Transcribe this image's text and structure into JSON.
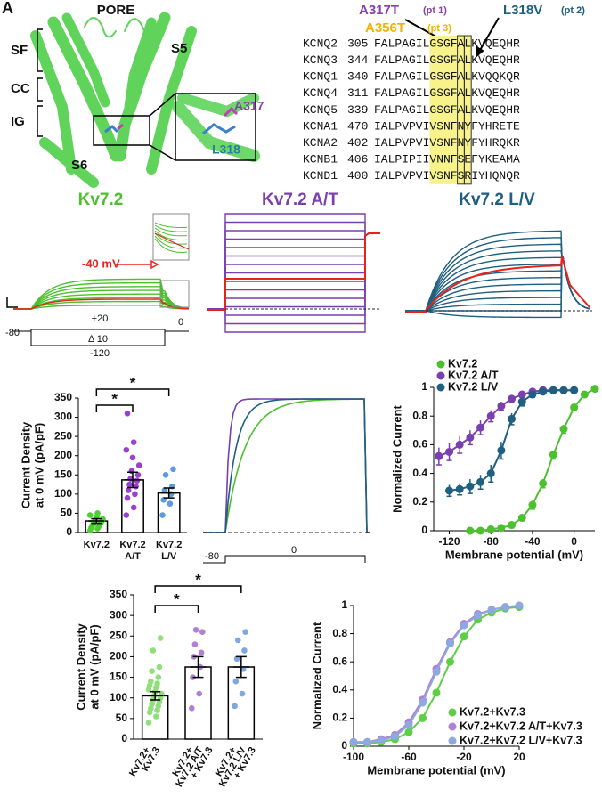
{
  "panel_label": "A",
  "structure": {
    "title": "PORE",
    "regions": [
      "SF",
      "CC",
      "IG"
    ],
    "helices": [
      "S5",
      "S6"
    ],
    "residues": [
      "A317",
      "L318"
    ]
  },
  "alignment": {
    "mutations": [
      {
        "name": "A317T",
        "patient": "(pt 1)",
        "color": "#8a3fb0"
      },
      {
        "name": "A356T",
        "patient": "(pt 3)",
        "color": "#f0b400"
      },
      {
        "name": "L318V",
        "patient": "(pt 2)",
        "color": "#1f5f80"
      }
    ],
    "rows": [
      [
        "KCNQ2",
        "305",
        "FALPAGILGSGFALKVQEQHR"
      ],
      [
        "KCNQ3",
        "344",
        "FALPAGILGSGFALKVQEQHR"
      ],
      [
        "KCNQ1",
        "340",
        "FALPAGILGSGFALKVQQKQR"
      ],
      [
        "KCNQ4",
        "311",
        "FALPAGILGSGFALKVQEQHR"
      ],
      [
        "KCNQ5",
        "339",
        "FALPAGILGSGFALKVQEQHR"
      ],
      [
        "KCNA1",
        "470",
        "IALPVPVIVSNFNYFYHRETE"
      ],
      [
        "KCNA2",
        "402",
        "IALPVPVIVSNFNYFYHRQKR"
      ],
      [
        "KCNB1",
        "406",
        "IALPIPIIVNNFSEFYKEAMA"
      ],
      [
        "KCND1",
        "400",
        "IALPVPVIVSNFSRIYHQNQR"
      ]
    ]
  },
  "traces": {
    "titles": [
      "Kv7.2",
      "Kv7.2 A/T",
      "Kv7.2 L/V"
    ],
    "colors": [
      "#4cc02f",
      "#7a3fb0",
      "#1f5f80"
    ],
    "annotation": "-40 mV",
    "protocol": {
      "hold": "-80",
      "top": "+20",
      "step": "Δ 10",
      "bottom": "-120",
      "tail": "0"
    }
  },
  "activation": {
    "protocol": {
      "hold": "-80",
      "step": "0"
    }
  },
  "chart_data": [
    {
      "type": "bar",
      "ylabel": [
        "Current Density",
        "at 0 mV (pA/pF)"
      ],
      "categories": [
        [
          "Kv7.2"
        ],
        [
          "Kv7.2",
          "A/T"
        ],
        [
          "Kv7.2",
          "L/V"
        ]
      ],
      "values": [
        30,
        137,
        103
      ],
      "errors": [
        6,
        20,
        13
      ],
      "colors": [
        "#4cd02f",
        "#9b3fd0",
        "#5b9be0"
      ],
      "points": [
        [
          5,
          10,
          12,
          15,
          18,
          20,
          22,
          25,
          28,
          30,
          32,
          35,
          40,
          45,
          50
        ],
        [
          45,
          65,
          90,
          100,
          110,
          120,
          125,
          135,
          140,
          150,
          160,
          175,
          195,
          215,
          235,
          310
        ],
        [
          45,
          75,
          85,
          100,
          110,
          120,
          150,
          165
        ]
      ],
      "ylim": [
        0,
        350
      ],
      "yticks": [
        0,
        50,
        100,
        150,
        200,
        250,
        300,
        350
      ],
      "annotations": [
        "*",
        "*"
      ]
    },
    {
      "type": "line",
      "xlabel": "Membrane potential (mV)",
      "ylabel": "Normalized Current",
      "x": [
        -130,
        -120,
        -110,
        -100,
        -90,
        -80,
        -70,
        -60,
        -50,
        -40,
        -30,
        -20,
        -10,
        0,
        10,
        20
      ],
      "series": [
        {
          "name": "Kv7.2",
          "color": "#4cc02f",
          "values": [
            null,
            null,
            null,
            0,
            0,
            0.01,
            0.02,
            0.04,
            0.09,
            0.18,
            0.33,
            0.53,
            0.71,
            0.86,
            0.95,
            0.99
          ],
          "errors": [
            null,
            null,
            null,
            0.01,
            0.01,
            0.01,
            0.01,
            0.02,
            0.02,
            0.03,
            0.03,
            0.03,
            0.03,
            0.02,
            0.02,
            0.01
          ]
        },
        {
          "name": "Kv7.2 A/T",
          "color": "#7a3fb0",
          "values": [
            0.52,
            0.55,
            0.6,
            0.65,
            0.72,
            0.8,
            0.87,
            0.92,
            0.95,
            0.97,
            0.98,
            0.98,
            0.98,
            0.98,
            null,
            null
          ],
          "errors": [
            0.06,
            0.06,
            0.06,
            0.05,
            0.05,
            0.04,
            0.03,
            0.02,
            0.02,
            0.01,
            0.01,
            0.01,
            0.01,
            0.01,
            null,
            null
          ]
        },
        {
          "name": "Kv7.2 L/V",
          "color": "#1f5f80",
          "values": [
            null,
            0.28,
            0.29,
            0.31,
            0.34,
            0.4,
            0.56,
            0.78,
            0.9,
            0.95,
            0.97,
            0.98,
            0.98,
            0.98,
            null,
            null
          ],
          "errors": [
            null,
            0.04,
            0.04,
            0.05,
            0.05,
            0.06,
            0.06,
            0.04,
            0.03,
            0.02,
            0.01,
            0.01,
            0.01,
            0.01,
            null,
            null
          ]
        }
      ],
      "xlim": [
        -135,
        20
      ],
      "xticks": [
        -120,
        -80,
        -40,
        0
      ],
      "ylim": [
        0,
        1
      ],
      "yticks": [
        0,
        0.2,
        0.4,
        0.6,
        0.8,
        1
      ],
      "legend": "top-left"
    },
    {
      "type": "bar",
      "ylabel": [
        "Current Density",
        "at 0 mV (pA/pF)"
      ],
      "categories": [
        [
          "Kv7.2+",
          "Kv7.3"
        ],
        [
          "Kv7.2+",
          "Kv7.2 A/T",
          "+ Kv7.3"
        ],
        [
          "Kv7.2+",
          "Kv7.2 L/V",
          "+ Kv7.3"
        ]
      ],
      "values": [
        105,
        175,
        175
      ],
      "errors": [
        10,
        25,
        25
      ],
      "colors": [
        "#8fe07a",
        "#b07fd6",
        "#7fa8e0"
      ],
      "points": [
        [
          40,
          55,
          65,
          70,
          75,
          80,
          85,
          90,
          95,
          100,
          105,
          110,
          115,
          120,
          125,
          130,
          135,
          140,
          150,
          165,
          175,
          215,
          245
        ],
        [
          75,
          110,
          150,
          175,
          200,
          210,
          230,
          260,
          265
        ],
        [
          80,
          110,
          140,
          170,
          195,
          215,
          240,
          260
        ]
      ],
      "ylim": [
        0,
        350
      ],
      "yticks": [
        0,
        50,
        100,
        150,
        200,
        250,
        300,
        350
      ],
      "annotations": [
        "*",
        "*"
      ]
    },
    {
      "type": "line",
      "xlabel": "Membrane potential (mV)",
      "ylabel": "Normalized Current",
      "x": [
        -100,
        -90,
        -80,
        -70,
        -60,
        -50,
        -40,
        -30,
        -20,
        -10,
        0,
        10,
        20
      ],
      "series": [
        {
          "name": "Kv7.2+Kv7.3",
          "color": "#5ccf45",
          "values": [
            0.02,
            0.02,
            0.03,
            0.05,
            0.1,
            0.2,
            0.38,
            0.6,
            0.78,
            0.9,
            0.95,
            0.98,
            0.99
          ]
        },
        {
          "name": "Kv7.2+Kv7.2 A/T+Kv7.3",
          "color": "#b07fd6",
          "values": [
            0.03,
            0.03,
            0.05,
            0.08,
            0.17,
            0.33,
            0.55,
            0.74,
            0.87,
            0.94,
            0.97,
            0.99,
            1
          ]
        },
        {
          "name": "Kv7.2+Kv7.2 L/V+Kv7.3",
          "color": "#8fa8e0",
          "values": [
            0.03,
            0.03,
            0.04,
            0.07,
            0.15,
            0.31,
            0.53,
            0.73,
            0.86,
            0.93,
            0.97,
            0.99,
            1
          ]
        }
      ],
      "xlim": [
        -100,
        20
      ],
      "xticks": [
        -100,
        -60,
        -20,
        20
      ],
      "ylim": [
        0,
        1
      ],
      "yticks": [
        0,
        0.2,
        0.4,
        0.6,
        0.8,
        1
      ],
      "legend": "bottom-right"
    }
  ]
}
